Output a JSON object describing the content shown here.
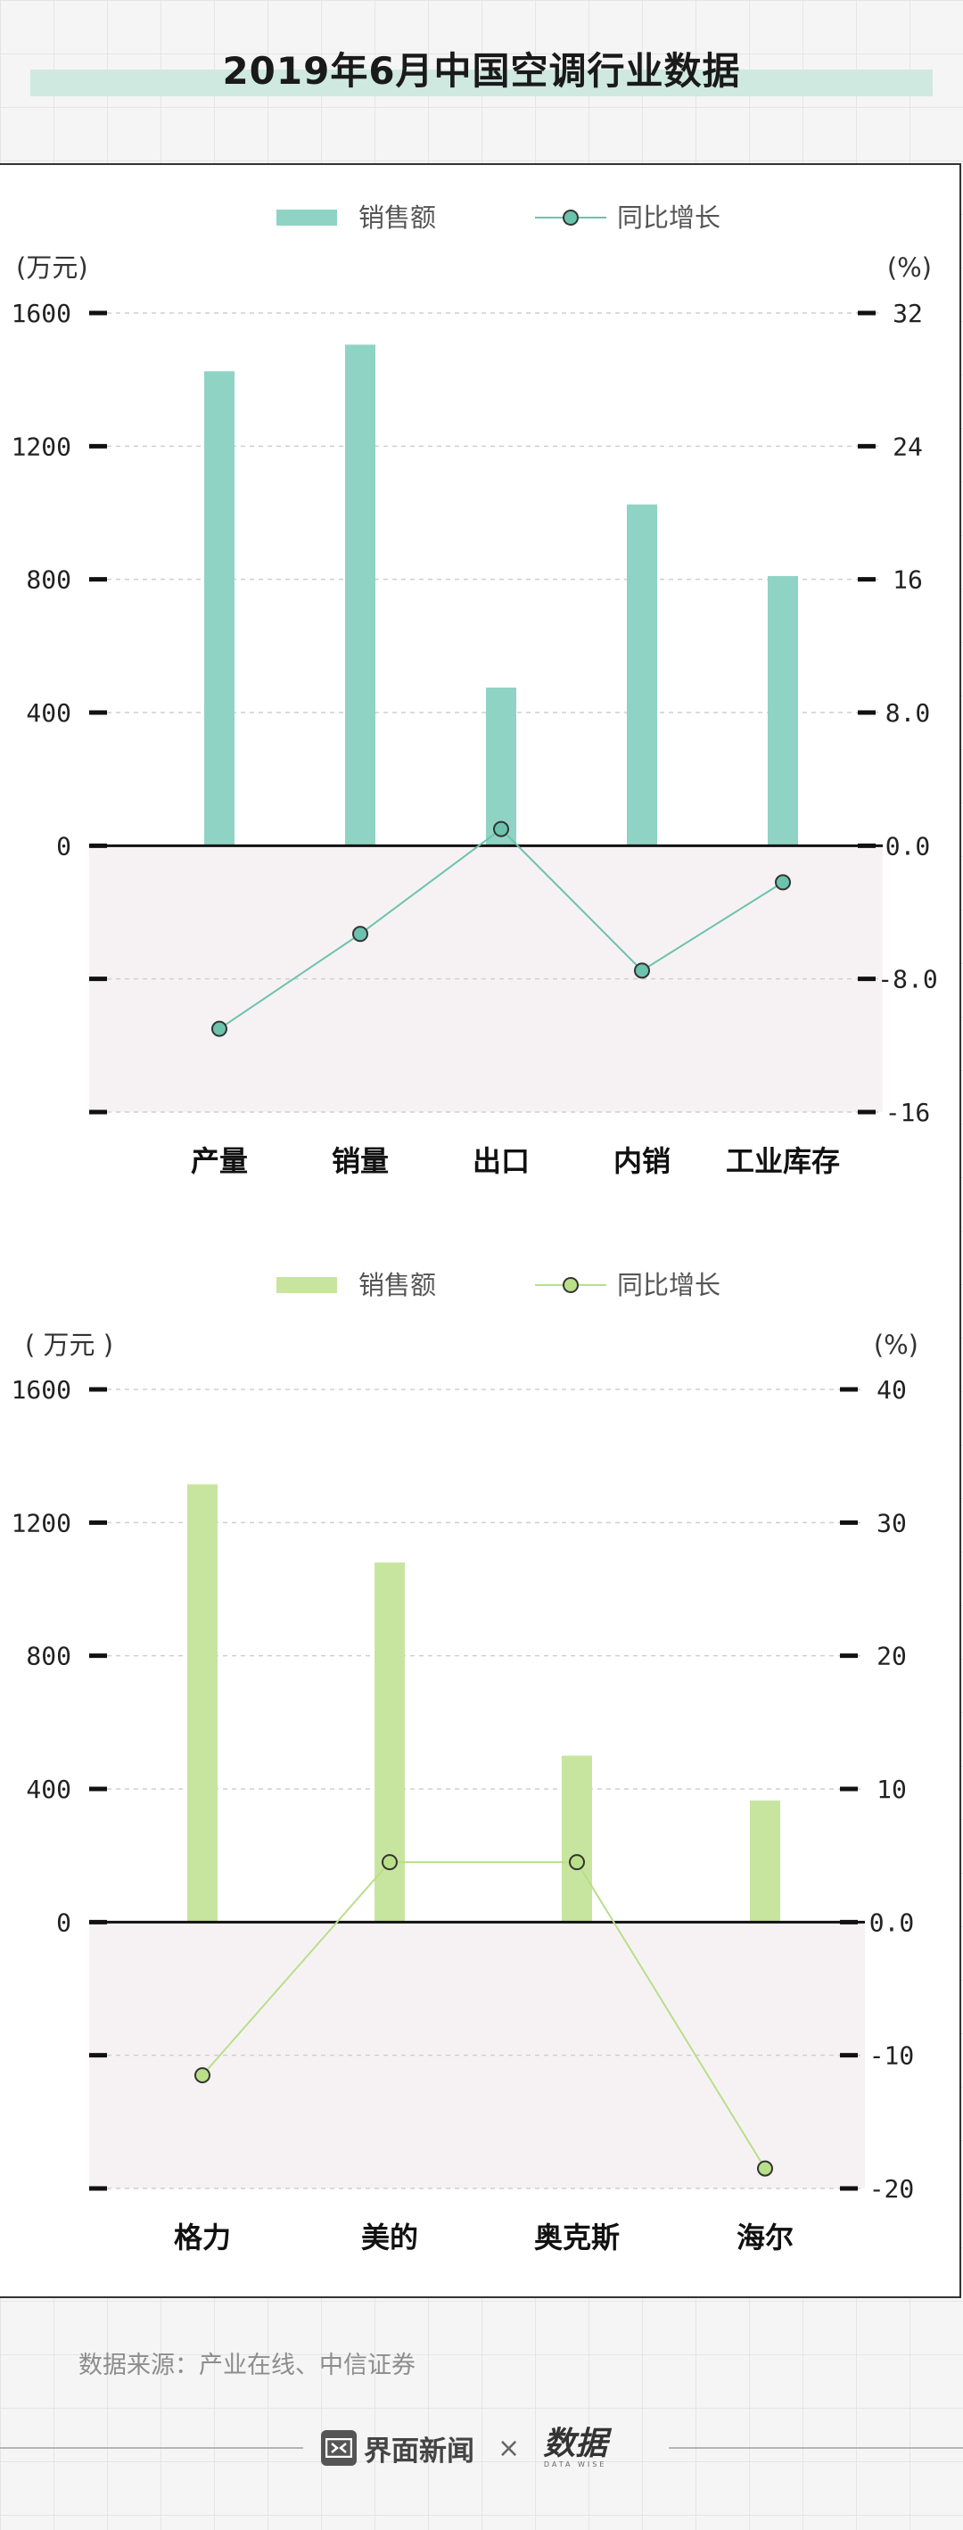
{
  "title": "2019年6月中国空调行业数据",
  "source": "数据来源：产业在线、中信证券",
  "footer": {
    "brand": "界面新闻",
    "times": "×",
    "logo_text": "数据",
    "logo_sub": "DATA WISE"
  },
  "colors": {
    "bar1": "#8fd3c4",
    "dot1": "#6cc3ad",
    "bar2": "#c8e5a0",
    "dot2": "#b9df88",
    "negative_bg": "#f6f2f4"
  },
  "chart_data": [
    {
      "type": "bar",
      "categories": [
        "产量",
        "销量",
        "出口",
        "内销",
        "工业库存"
      ],
      "series": [
        {
          "name": "销售额",
          "type": "bar",
          "axis": "left",
          "values": [
            1425,
            1505,
            475,
            1025,
            810
          ]
        },
        {
          "name": "同比增长",
          "type": "line",
          "axis": "right",
          "values": [
            -11.0,
            -5.3,
            1.0,
            -7.5,
            -2.2
          ]
        }
      ],
      "left_unit": "(万元)",
      "right_unit": "(%)",
      "left_ticks": [
        "1600",
        "1200",
        "800",
        "400",
        "0"
      ],
      "right_ticks": [
        "32",
        "24",
        "16",
        "8.0",
        "0.0",
        "-8.0",
        "-16"
      ],
      "ylim_left": [
        -800,
        1600
      ],
      "ylim_right": [
        -16,
        32
      ],
      "legend_position": "top"
    },
    {
      "type": "bar",
      "categories": [
        "格力",
        "美的",
        "奥克斯",
        "海尔"
      ],
      "series": [
        {
          "name": "销售额",
          "type": "bar",
          "axis": "left",
          "values": [
            1315,
            1080,
            500,
            365
          ]
        },
        {
          "name": "同比增长",
          "type": "line",
          "axis": "right",
          "values": [
            -11.5,
            4.5,
            4.5,
            -18.5
          ]
        }
      ],
      "left_unit": "( 万元 )",
      "right_unit": "(%)",
      "left_ticks": [
        "1600",
        "1200",
        "800",
        "400",
        "0"
      ],
      "right_ticks": [
        "40",
        "30",
        "20",
        "10",
        "0.0",
        "-10",
        "-20"
      ],
      "ylim_left": [
        -800,
        1600
      ],
      "ylim_right": [
        -20,
        40
      ],
      "legend_position": "top"
    }
  ]
}
